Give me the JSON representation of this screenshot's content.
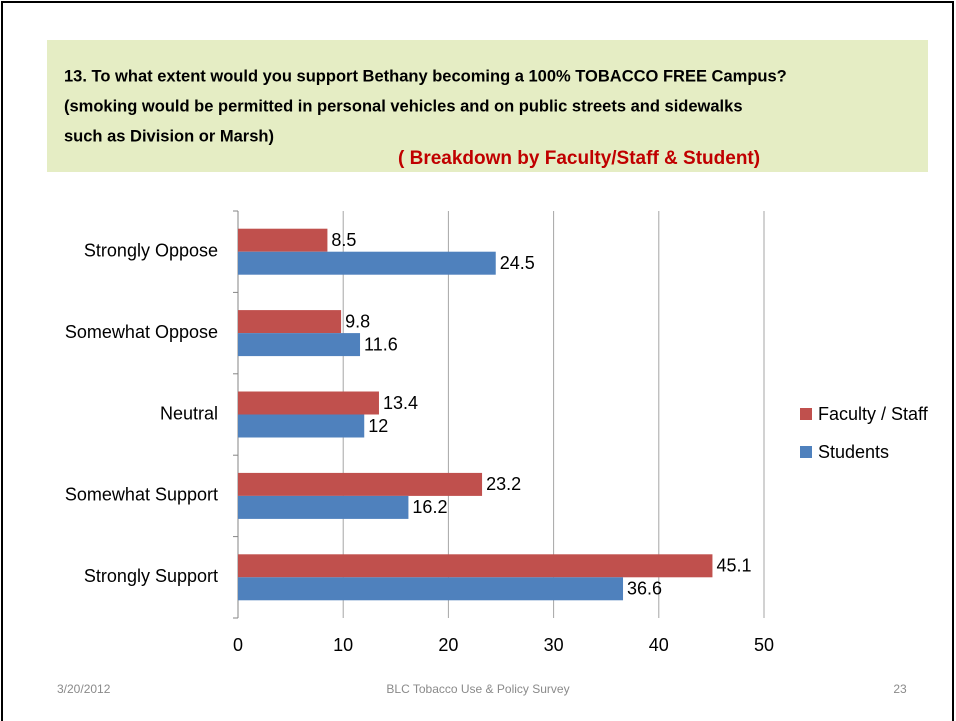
{
  "chart_data": {
    "type": "bar",
    "orientation": "horizontal",
    "title": [
      "13. To what extent would you support Bethany becoming a 100% TOBACCO FREE Campus?",
      "(smoking would be permitted in personal vehicles and on public streets and sidewalks",
      "such as Division or Marsh)"
    ],
    "subtitle": "( Breakdown by Faculty/Staff & Student)",
    "categories": [
      "Strongly Oppose",
      "Somewhat Oppose",
      "Neutral",
      "Somewhat Support",
      "Strongly Support"
    ],
    "series": [
      {
        "name": "Faculty / Staff",
        "color": "#c0504d",
        "values": [
          8.5,
          9.8,
          13.4,
          23.2,
          45.1
        ]
      },
      {
        "name": "Students",
        "color": "#4f81bd",
        "values": [
          24.5,
          11.6,
          12,
          16.2,
          36.6
        ]
      }
    ],
    "xlim": [
      0,
      50
    ],
    "xticks": [
      0,
      10,
      20,
      30,
      40,
      50
    ],
    "grid": true,
    "legend": "right"
  },
  "footer": {
    "date": "3/20/2012",
    "center": "BLC Tobacco Use & Policy Survey",
    "page": "23"
  }
}
